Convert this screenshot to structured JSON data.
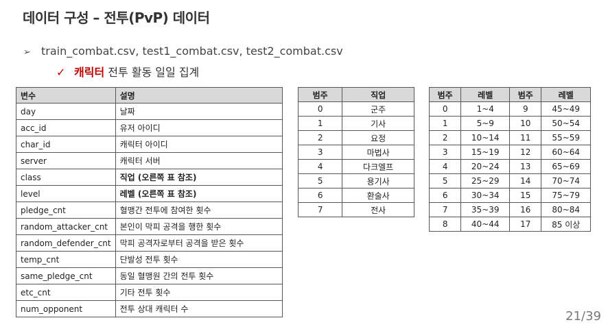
{
  "title": "데이터 구성 – 전투(PvP) 데이터",
  "bullet1": "train_combat.csv, test1_combat.csv, test2_combat.csv",
  "bullet2_highlight": "캐릭터",
  "bullet2_rest": " 전투 활동 일일 집계",
  "var_table": {
    "headers": [
      "변수",
      "설명"
    ],
    "rows": [
      [
        "day",
        "날짜"
      ],
      [
        "acc_id",
        "유저 아이디"
      ],
      [
        "char_id",
        "캐릭터 아이디"
      ],
      [
        "server",
        "캐릭터 서버"
      ],
      [
        "class",
        "직업 (오른쪽 표 참조)"
      ],
      [
        "level",
        "레벨 (오른쪽 표 참조)"
      ],
      [
        "pledge_cnt",
        "혈맹간 전투에 참여한 횟수"
      ],
      [
        "random_attacker_cnt",
        "본인이 막피 공격을 행한 횟수"
      ],
      [
        "random_defender_cnt",
        "막피 공격자로부터 공격을 받은 횟수"
      ],
      [
        "temp_cnt",
        "단발성 전투 횟수"
      ],
      [
        "same_pledge_cnt",
        "동일 혈맹원 간의 전투 횟수"
      ],
      [
        "etc_cnt",
        "기타 전투 횟수"
      ],
      [
        "num_opponent",
        "전투 상대 캐릭터 수"
      ]
    ]
  },
  "job_table": {
    "headers": [
      "범주",
      "직업"
    ],
    "rows": [
      [
        "0",
        "군주"
      ],
      [
        "1",
        "기사"
      ],
      [
        "2",
        "요정"
      ],
      [
        "3",
        "마법사"
      ],
      [
        "4",
        "다크엘프"
      ],
      [
        "5",
        "용기사"
      ],
      [
        "6",
        "환술사"
      ],
      [
        "7",
        "전사"
      ]
    ]
  },
  "level_table": {
    "headers": [
      "범주",
      "레벨",
      "범주",
      "레벨"
    ],
    "rows": [
      [
        "0",
        "1~4",
        "9",
        "45~49"
      ],
      [
        "1",
        "5~9",
        "10",
        "50~54"
      ],
      [
        "2",
        "10~14",
        "11",
        "55~59"
      ],
      [
        "3",
        "15~19",
        "12",
        "60~64"
      ],
      [
        "4",
        "20~24",
        "13",
        "65~69"
      ],
      [
        "5",
        "25~29",
        "14",
        "70~74"
      ],
      [
        "6",
        "30~34",
        "15",
        "75~79"
      ],
      [
        "7",
        "35~39",
        "16",
        "80~84"
      ],
      [
        "8",
        "40~44",
        "17",
        "85 이상"
      ]
    ]
  },
  "page_number": "21/39"
}
